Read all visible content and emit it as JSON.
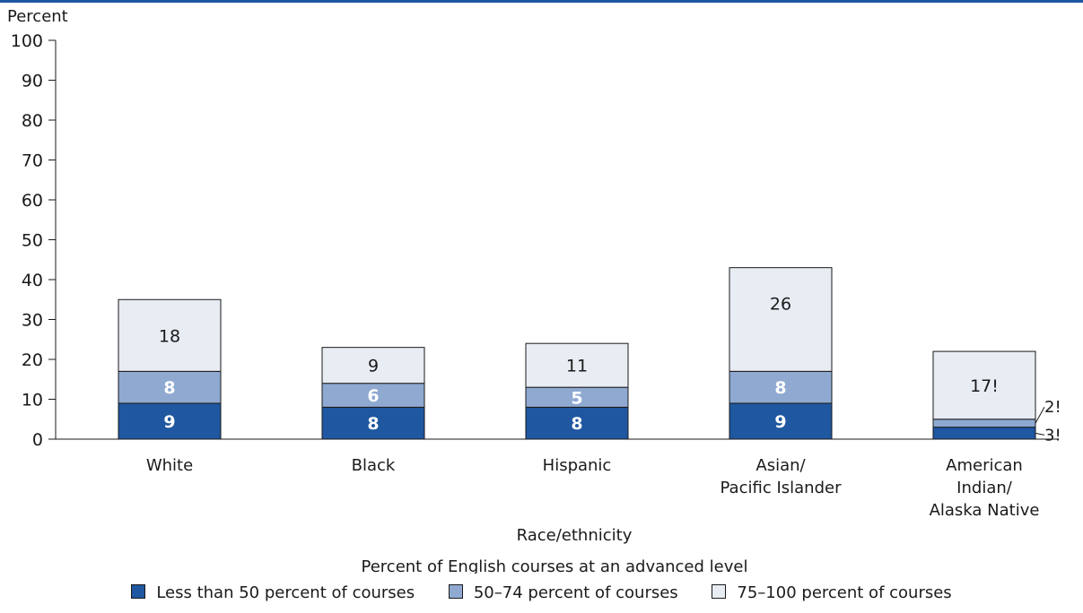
{
  "chart_data": {
    "type": "bar",
    "stacked": true,
    "ylabel": "Percent",
    "xlabel": "Race/ethnicity",
    "ylim": [
      0,
      100
    ],
    "yticks": [
      0,
      10,
      20,
      30,
      40,
      50,
      60,
      70,
      80,
      90,
      100
    ],
    "categories": [
      [
        "White"
      ],
      [
        "Black"
      ],
      [
        "Hispanic"
      ],
      [
        "Asian/",
        "Pacific Islander"
      ],
      [
        "American",
        "Indian/",
        "Alaska Native"
      ]
    ],
    "legend_title": "Percent of English courses at an advanced level",
    "legend_position": "bottom",
    "series": [
      {
        "name": "Less than 50 percent of courses",
        "color": "#1f57a0",
        "label_color": "#ffffff",
        "values": [
          9,
          8,
          8,
          9,
          3
        ],
        "labels": [
          "9",
          "8",
          "8",
          "9",
          "3!"
        ]
      },
      {
        "name": "50–74 percent of courses",
        "color": "#8fa9d1",
        "label_color": "#ffffff",
        "values": [
          8,
          6,
          5,
          8,
          2
        ],
        "labels": [
          "8",
          "6",
          "5",
          "8",
          "2!"
        ]
      },
      {
        "name": "75–100 percent of courses",
        "color": "#e8ecf3",
        "label_color": "#1a1a1a",
        "values": [
          18,
          9,
          11,
          26,
          17
        ],
        "labels": [
          "18",
          "9",
          "11",
          "26",
          "17!"
        ]
      }
    ]
  }
}
